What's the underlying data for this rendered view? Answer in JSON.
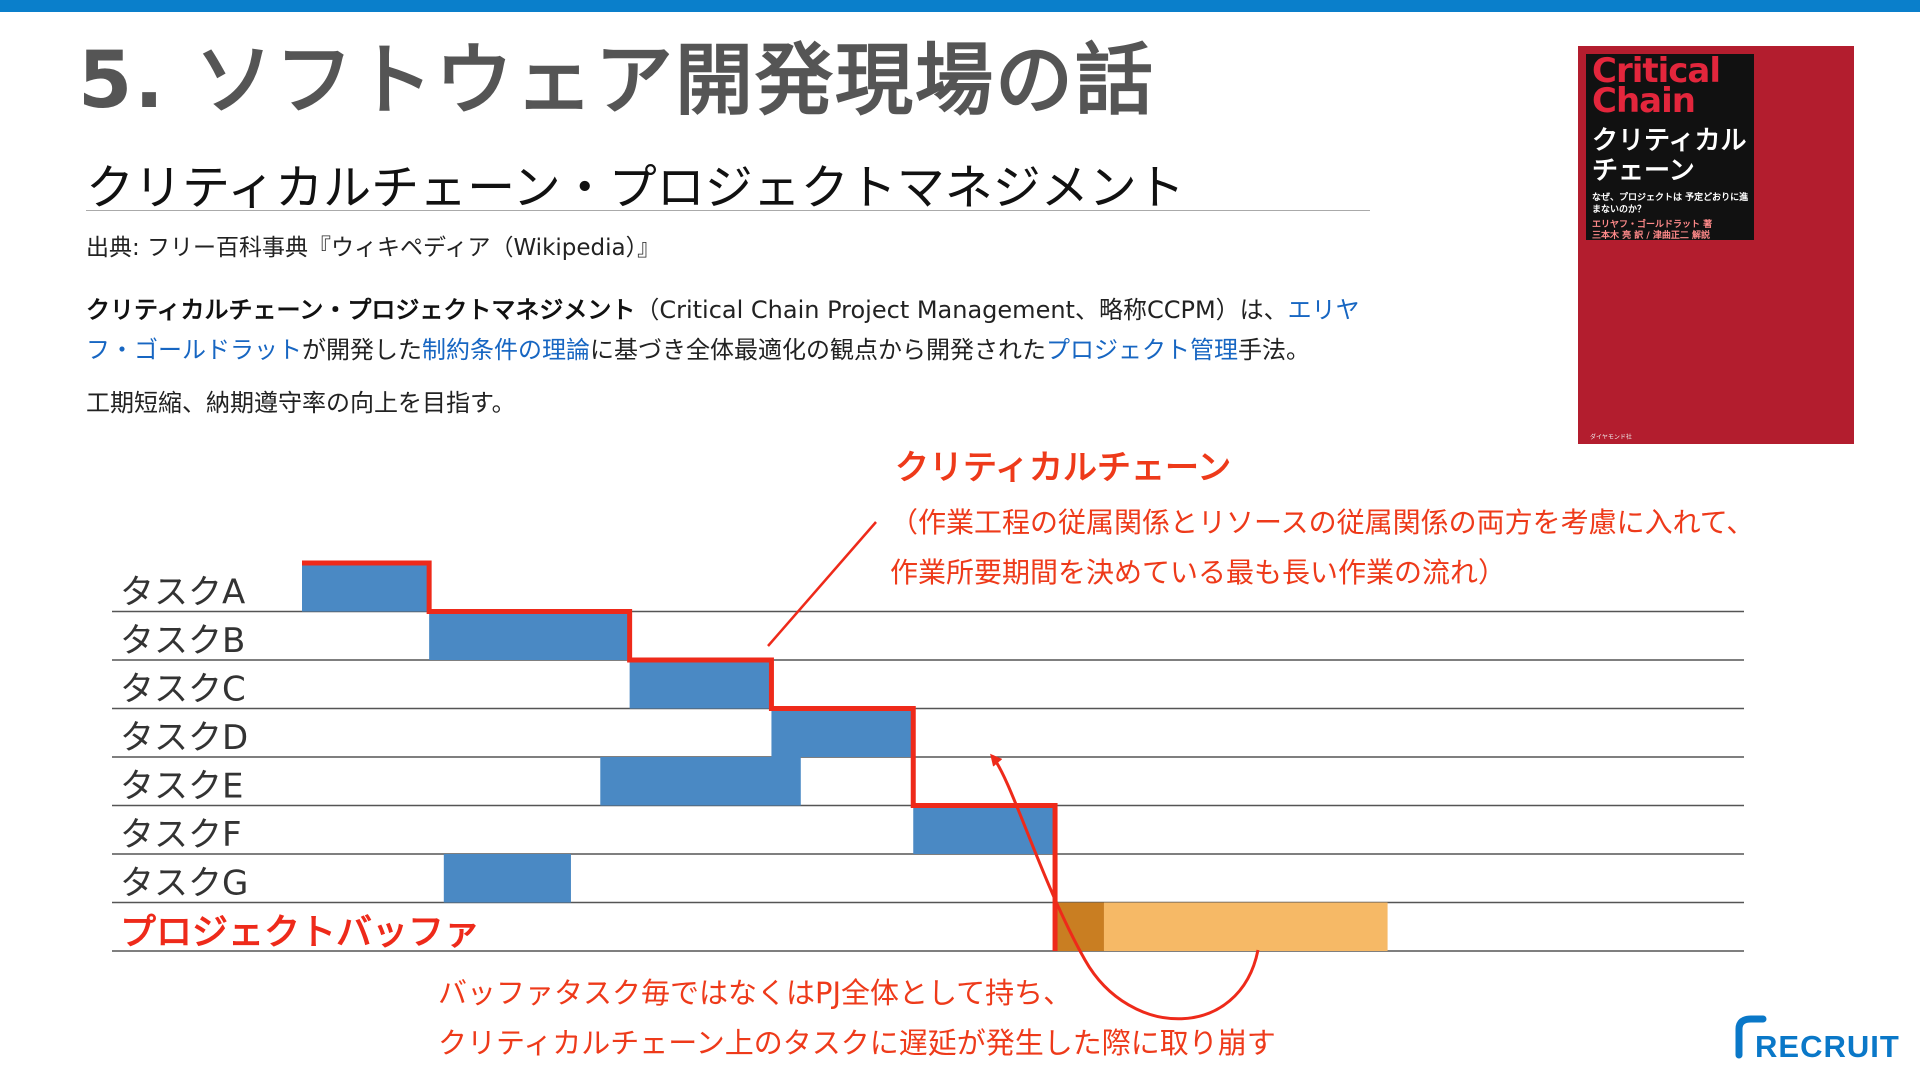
{
  "slide": {
    "title": "5. ソフトウェア開発現場の話",
    "accent_color": "#0a7fcb"
  },
  "wiki": {
    "heading": "クリティカルチェーン・プロジェクトマネジメント",
    "source": "出典: フリー百科事典『ウィキペディア（Wikipedia）』",
    "term": "クリティカルチェーン・プロジェクトマネジメント",
    "text_1": "（Critical Chain Project Management、略称CCPM）は、",
    "link_author": "エリヤフ・ゴールドラット",
    "text_2": "が開発した",
    "link_toc": "制約条件の理論",
    "text_3": "に基づき全体最適化の観点から開発された",
    "link_pm": "プロジェクト管理",
    "text_4": "手法。",
    "goal": "工期短縮、納期遵守率の向上を目指す。",
    "link_color": "#1766c2"
  },
  "book": {
    "title_en": "Critical Chain",
    "title_jp": "クリティカル チェーン",
    "subtitle": "なぜ、プロジェクトは 予定どおりに進まないのか？",
    "author": "エリヤフ・ゴールドラット 著",
    "translator": "三本木 亮 訳 / 津曲正二 解説",
    "publisher": "ダイヤモンド社",
    "cover_color": "#b31d2e"
  },
  "diagram": {
    "tasks": [
      {
        "label": "タスクA",
        "start": 0,
        "end": 2.6
      },
      {
        "label": "タスクB",
        "start": 2.6,
        "end": 6.7
      },
      {
        "label": "タスクC",
        "start": 6.7,
        "end": 9.6
      },
      {
        "label": "タスクD",
        "start": 9.6,
        "end": 12.5
      },
      {
        "label": "タスクE",
        "start": 6.1,
        "end": 10.2
      },
      {
        "label": "タスクF",
        "start": 12.5,
        "end": 15.4
      },
      {
        "label": "タスクG",
        "start": 2.9,
        "end": 5.5
      }
    ],
    "buffer": {
      "label": "プロジェクトバッファ",
      "start": 15.4,
      "used_end": 16.4,
      "end": 22.2
    },
    "task_color": "#4a89c4",
    "buffer_color": "#f6b966",
    "buffer_used_color": "#c97e22",
    "chain_color": "#ee2a1a",
    "annotation_title": "クリティカルチェーン",
    "annotation_lines": [
      "（作業工程の従属関係とリソースの従属関係の両方を考慮に入れて、",
      "作業所要期間を決めている最も長い作業の流れ）"
    ],
    "buffer_note_lines": [
      "バッファタスク毎ではなくはPJ全体として持ち、",
      "クリティカルチェーン上のタスクに遅延が発生した際に取り崩す"
    ]
  },
  "logo": {
    "text": "RECRUIT",
    "color": "#0a78c8"
  }
}
